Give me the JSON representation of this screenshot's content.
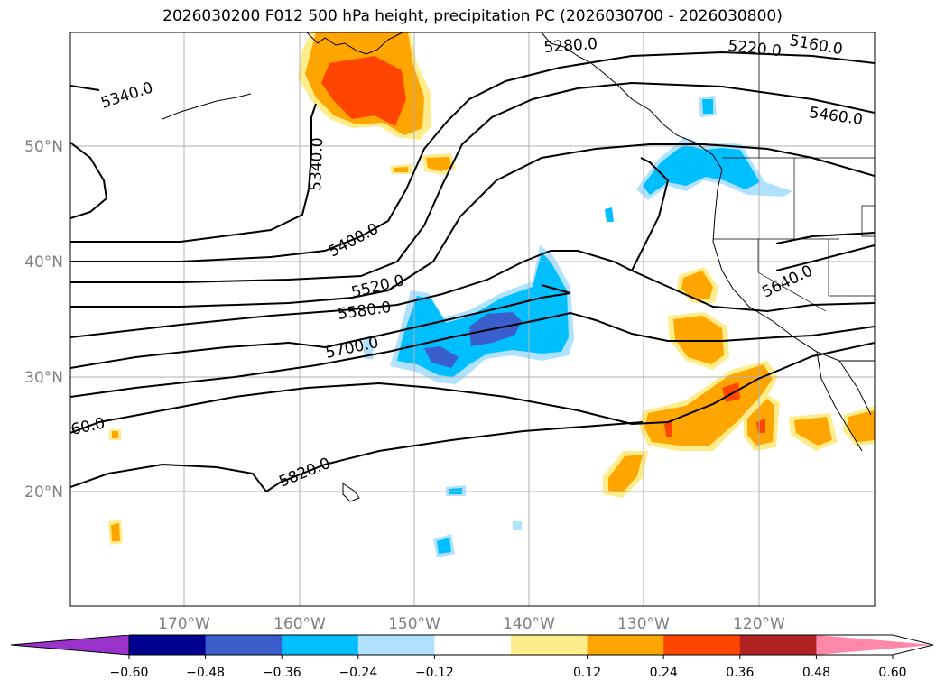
{
  "title": "2026030200 F012 500 hPa height, precipitation PC (2026030700 - 2026030800)",
  "lat_labels": [
    "50°N",
    "40°N",
    "30°N",
    "20°N"
  ],
  "lon_labels": [
    "170°W",
    "160°W",
    "150°W",
    "140°W",
    "130°W",
    "120°W"
  ],
  "contour_labels": [
    "5340.0",
    "5340.0",
    "5280.0",
    "5220.0",
    "5160.0",
    "5460.0",
    "5400.0",
    "5520.0",
    "5580.0",
    "5700.0",
    "5640.0",
    "60.0",
    "5820.0"
  ],
  "colorbar": {
    "ticks": [
      "−0.60",
      "−0.48",
      "−0.36",
      "−0.24",
      "−0.12",
      "0.12",
      "0.24",
      "0.36",
      "0.48",
      "0.60"
    ],
    "colors": [
      "#9933cc",
      "#000090",
      "#3a5fcd",
      "#00bfff",
      "#b0e2ff",
      "#ffffff",
      "#ffec8b",
      "#ffa500",
      "#ff4500",
      "#b22222",
      "#ff88aa"
    ]
  }
}
